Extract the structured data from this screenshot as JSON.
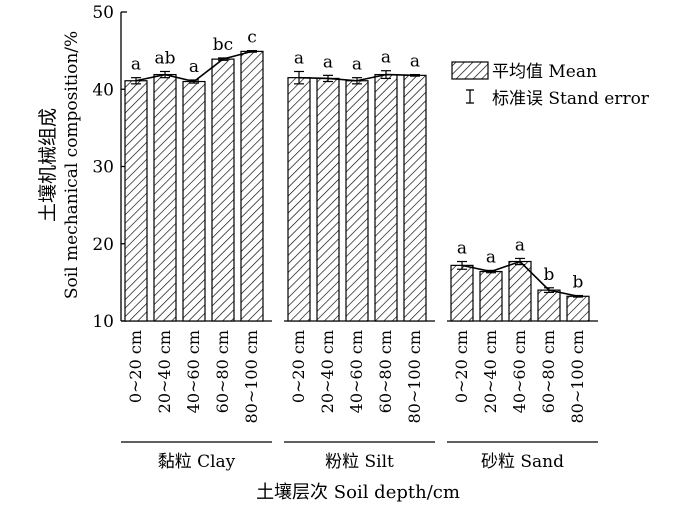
{
  "chart_data": {
    "type": "bar",
    "ylabel_cn": "土壤机械组成",
    "ylabel_en": "Soil mechanical composition/%",
    "xlabel": "土壤层次 Soil depth/cm",
    "ylim": [
      10,
      50
    ],
    "yticks": [
      "10",
      "20",
      "30",
      "40",
      "50"
    ],
    "legend": {
      "position": "right",
      "mean_label": "平均值 Mean",
      "error_label": "标准误 Stand error"
    },
    "groups": [
      {
        "name": "黏粒 Clay",
        "categories": [
          "0~20 cm",
          "20~40 cm",
          "40~60 cm",
          "60~80 cm",
          "80~100 cm"
        ],
        "values": [
          41.1,
          41.9,
          41.0,
          43.9,
          44.9
        ],
        "errors": [
          0.4,
          0.4,
          0.2,
          0.15,
          0.1
        ],
        "letters": [
          "a",
          "ab",
          "a",
          "bc",
          "c"
        ]
      },
      {
        "name": "粉粒 Silt",
        "categories": [
          "0~20 cm",
          "20~40 cm",
          "40~60 cm",
          "60~80 cm",
          "80~100 cm"
        ],
        "values": [
          41.5,
          41.4,
          41.1,
          41.9,
          41.8
        ],
        "errors": [
          0.8,
          0.4,
          0.4,
          0.5,
          0.1
        ],
        "letters": [
          "a",
          "a",
          "a",
          "a",
          "a"
        ]
      },
      {
        "name": "砂粒 Sand",
        "categories": [
          "0~20 cm",
          "20~40 cm",
          "40~60 cm",
          "60~80 cm",
          "80~100 cm"
        ],
        "values": [
          17.2,
          16.4,
          17.7,
          14.0,
          13.2
        ],
        "errors": [
          0.5,
          0.15,
          0.4,
          0.3,
          0.1
        ],
        "letters": [
          "a",
          "a",
          "a",
          "b",
          "b"
        ]
      }
    ]
  }
}
